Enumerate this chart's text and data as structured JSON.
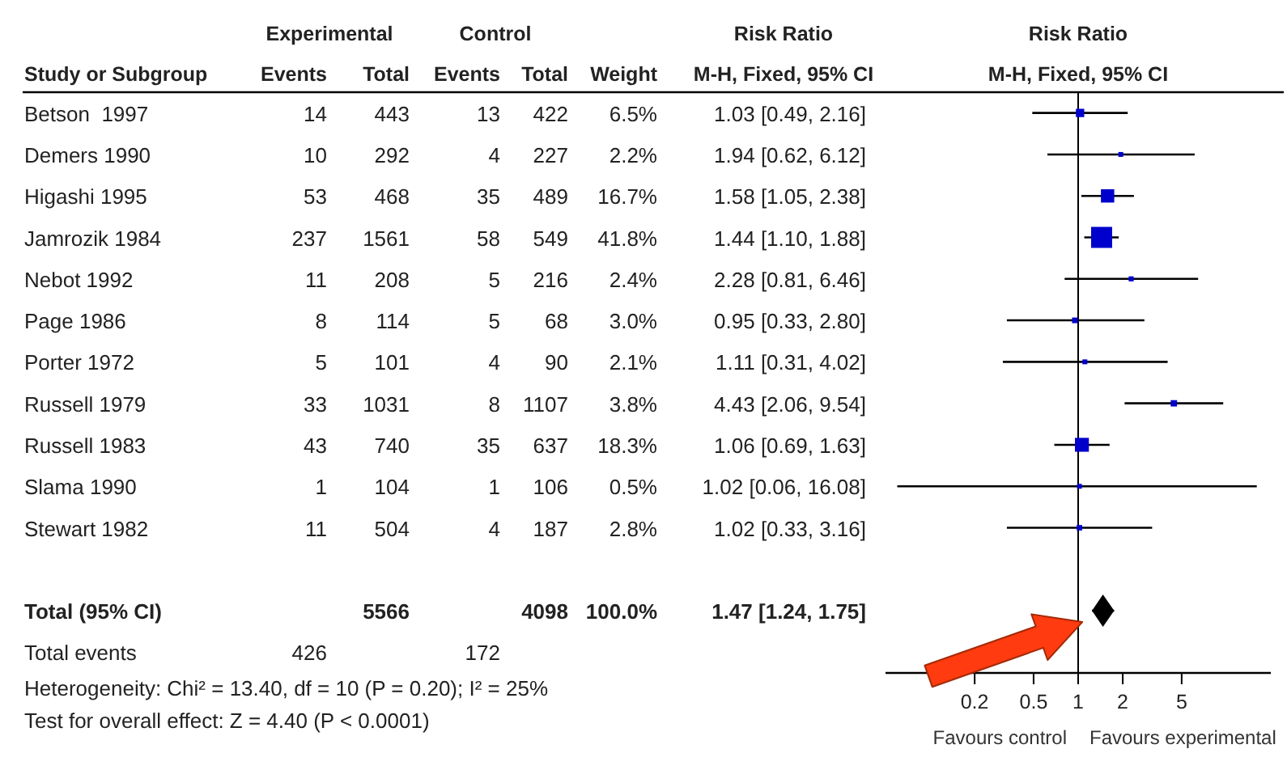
{
  "chart_data": [
    {
      "type": "other",
      "title": "Risk Ratio",
      "subtitle": "M-H, Fixed, 95% CI",
      "categories": [
        "Betson  1997",
        "Demers 1990",
        "Higashi 1995",
        "Jamrozik 1984",
        "Nebot 1992",
        "Page 1986",
        "Porter 1972",
        "Russell 1979",
        "Russell 1983",
        "Slama 1990",
        "Stewart 1982",
        null,
        "Total (95% CI)",
        "Total events"
      ],
      "annotations": [
        "Study or Subgroup",
        "Experimental",
        "Control",
        "Heterogeneity: Chi² = 13.40, df = 10 (P = 0.20); I² = 25%",
        "Test for overall effect: Z = 4.40 (P < 0.0001)"
      ],
      "series": [
        {
          "name": "Events",
          "values": [
            14,
            10,
            53,
            237,
            11,
            8,
            5,
            33,
            43,
            1,
            11,
            null,
            null,
            426
          ],
          "value_labels": [
            "14",
            "10",
            "53",
            "237",
            "11",
            "8",
            "5",
            "33",
            "43",
            "1",
            "11",
            null,
            null,
            "426"
          ]
        },
        {
          "name": "Total",
          "values": [
            443,
            292,
            468,
            1561,
            208,
            114,
            101,
            1031,
            740,
            104,
            504,
            null,
            5566,
            null
          ],
          "value_labels": [
            "443",
            "292",
            "468",
            "1561",
            "208",
            "114",
            "101",
            "1031",
            "740",
            "104",
            "504",
            null,
            "5566",
            null
          ]
        },
        {
          "name": "Events",
          "values": [
            13,
            4,
            35,
            58,
            5,
            5,
            4,
            8,
            35,
            1,
            4,
            null,
            null,
            172
          ],
          "value_labels": [
            "13",
            "4",
            "35",
            "58",
            "5",
            "5",
            "4",
            "8",
            "35",
            "1",
            "4",
            null,
            null,
            "172"
          ]
        },
        {
          "name": "Total",
          "values": [
            422,
            227,
            489,
            549,
            216,
            68,
            90,
            1107,
            637,
            106,
            187,
            null,
            4098,
            null
          ],
          "value_labels": [
            "422",
            "227",
            "489",
            "549",
            "216",
            "68",
            "90",
            "1107",
            "637",
            "106",
            "187",
            null,
            "4098",
            null
          ]
        },
        {
          "name": "Weight",
          "values": [
            6.5,
            2.2,
            16.7,
            41.8,
            2.4,
            3.0,
            2.1,
            3.8,
            18.3,
            0.5,
            2.8,
            null,
            100.0,
            null
          ],
          "value_labels": [
            "6.5%",
            "2.2%",
            "16.7%",
            "41.8%",
            "2.4%",
            "3.0%",
            "2.1%",
            "3.8%",
            "18.3%",
            "0.5%",
            "2.8%",
            null,
            "100.0%",
            null
          ]
        },
        {
          "values": [
            1.03,
            1.94,
            1.58,
            1.44,
            2.28,
            0.95,
            1.11,
            4.43,
            1.06,
            1.02,
            1.02,
            null,
            1.47,
            null
          ],
          "value_labels": [
            "1.03 [0.49, 2.16]",
            "1.94 [0.62, 6.12]",
            "1.58 [1.05, 2.38]",
            "1.44 [1.10, 1.88]",
            "2.28 [0.81, 6.46]",
            "0.95 [0.33, 2.80]",
            "1.11 [0.31, 4.02]",
            "4.43 [2.06, 9.54]",
            "1.06 [0.69, 1.63]",
            "1.02 [0.06, 16.08]",
            "1.02 [0.33, 3.16]",
            null,
            "1.47 [1.24, 1.75]",
            null
          ]
        }
      ]
    },
    {
      "type": "scatter",
      "orientation": "horizontal",
      "title": "Risk Ratio",
      "subtitle": "M-H, Fixed, 95% CI",
      "categories": [
        null,
        null,
        null,
        null,
        null,
        null,
        null,
        null,
        null,
        null,
        null,
        null,
        null,
        null
      ],
      "xlim": [
        0.05,
        20
      ],
      "xticks": [
        0.2,
        0.5,
        1,
        2,
        5
      ],
      "log": "x",
      "ref_lines": [
        {
          "axis": "x",
          "value": 1
        }
      ],
      "annotations": [
        "Favours control",
        "Favours experimental"
      ],
      "series": [
        {
          "type": "bubble",
          "marker": "square",
          "color": "#0000cc",
          "values": [
            1.03,
            1.94,
            1.58,
            1.44,
            2.28,
            0.95,
            1.11,
            4.43,
            1.06,
            1.02,
            1.02,
            null,
            null,
            null
          ],
          "errors": [
            [
              0.49,
              2.16
            ],
            [
              0.62,
              6.12
            ],
            [
              1.05,
              2.38
            ],
            [
              1.1,
              1.88
            ],
            [
              0.81,
              6.46
            ],
            [
              0.33,
              2.8
            ],
            [
              0.31,
              4.02
            ],
            [
              2.06,
              9.54
            ],
            [
              0.69,
              1.63
            ],
            [
              0.06,
              16.08
            ],
            [
              0.33,
              3.16
            ],
            null,
            null,
            null
          ],
          "sizes": [
            0.156,
            0.053,
            0.4,
            1,
            0.057,
            0.072,
            0.05,
            0.091,
            0.438,
            0.012,
            0.067,
            null,
            null,
            null
          ]
        },
        {
          "type": "scatter",
          "marker": "diamond",
          "color": "#000000",
          "values": [
            null,
            null,
            null,
            null,
            null,
            null,
            null,
            null,
            null,
            null,
            null,
            null,
            1.47,
            null
          ],
          "errors": [
            null,
            null,
            null,
            null,
            null,
            null,
            null,
            null,
            null,
            null,
            null,
            null,
            [
              1.24,
              1.75
            ],
            null
          ]
        }
      ]
    }
  ]
}
